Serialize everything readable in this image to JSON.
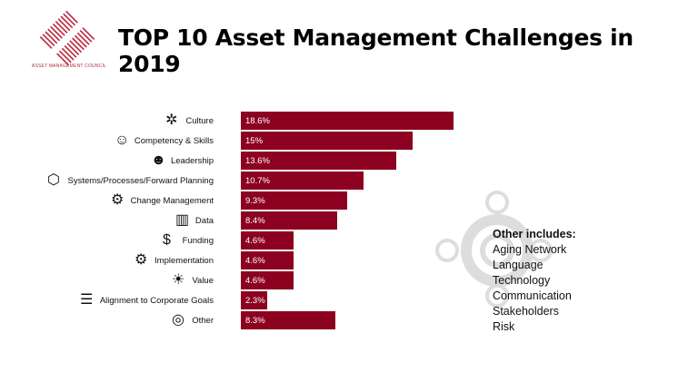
{
  "logo": {
    "text": "ASSET MANAGEMENT COUNCIL",
    "color": "#b8283c"
  },
  "title": "TOP 10 Asset Management Challenges in 2019",
  "chart_data": {
    "type": "bar",
    "orientation": "horizontal",
    "title": "TOP 10 Asset Management Challenges in 2019",
    "categories": [
      "Culture",
      "Competency & Skills",
      "Leadership",
      "Systems/Processes/Forward Planning",
      "Change Management",
      "Data",
      "Funding",
      "Implementation",
      "Value",
      "Alignment to Corporate Goals",
      "Other"
    ],
    "values": [
      18.6,
      15,
      13.6,
      10.7,
      9.3,
      8.4,
      4.6,
      4.6,
      4.6,
      2.3,
      8.3
    ],
    "data_labels": [
      "18.6%",
      "15%",
      "13.6%",
      "10.7%",
      "9.3%",
      "8.4%",
      "4.6%",
      "4.6%",
      "4.6%",
      "2.3%",
      "8.3%"
    ],
    "icons": [
      "tools-icon",
      "head-gears-icon",
      "person-speech-icon",
      "network-icon",
      "gear-checklist-icon",
      "data-chart-icon",
      "money-bag-icon",
      "gears-cycle-icon",
      "hand-idea-icon",
      "indent-list-icon",
      "target-icon"
    ],
    "bar_color": "#8c0020",
    "grid": false
  },
  "other": {
    "heading": "Other includes:",
    "items": [
      "Aging Network",
      "Language",
      "Technology",
      "Communication",
      "Stakeholders",
      "Risk"
    ]
  }
}
